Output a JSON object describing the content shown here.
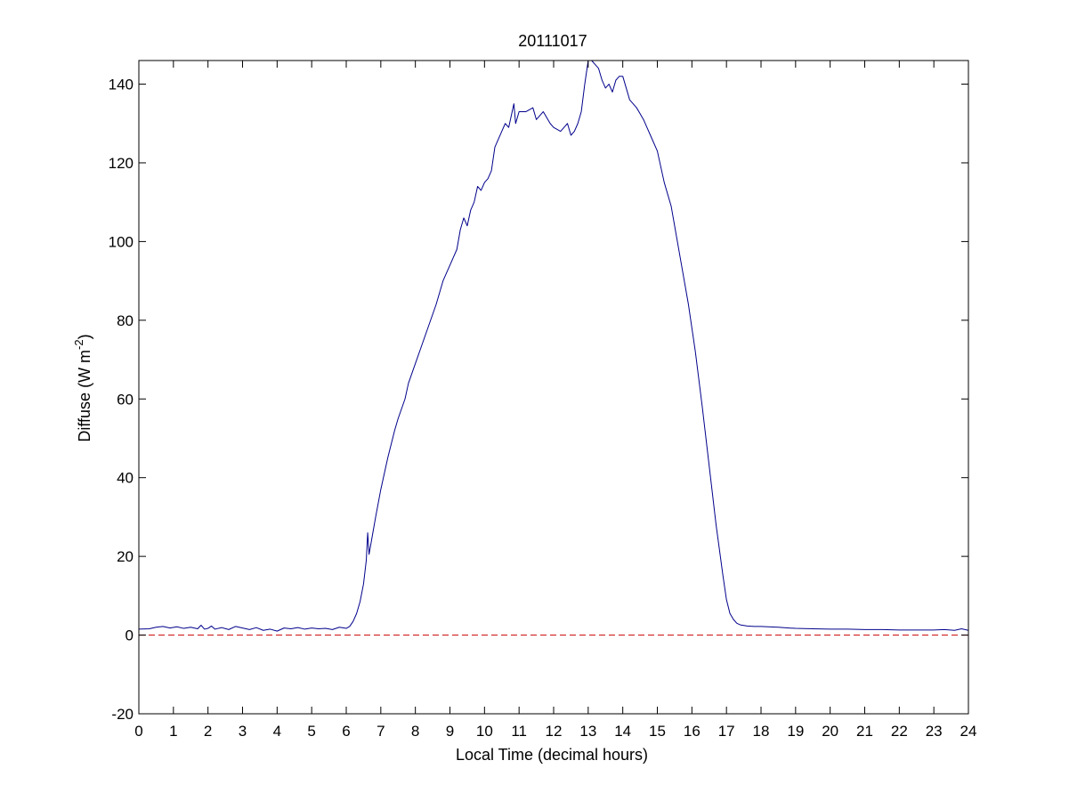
{
  "chart_data": {
    "type": "line",
    "title": "20111017",
    "xlabel": "Local Time (decimal hours)",
    "ylabel": {
      "main": "Diffuse (W m",
      "superscript": "-2",
      "close": ")"
    },
    "xlim": [
      0,
      24
    ],
    "ylim": [
      -20,
      146
    ],
    "x_ticks": [
      0,
      1,
      2,
      3,
      4,
      5,
      6,
      7,
      8,
      9,
      10,
      11,
      12,
      13,
      14,
      15,
      16,
      17,
      18,
      19,
      20,
      21,
      22,
      23,
      24
    ],
    "y_ticks": [
      -20,
      0,
      20,
      40,
      60,
      80,
      100,
      120,
      140
    ],
    "grid": false,
    "legend": "none",
    "reference_line": {
      "y": 0,
      "style": "dashed",
      "color": "#cc0000"
    },
    "series": [
      {
        "color": "#00008b",
        "points": [
          [
            0.0,
            1.5
          ],
          [
            0.3,
            1.6
          ],
          [
            0.5,
            2.0
          ],
          [
            0.7,
            2.2
          ],
          [
            0.9,
            1.8
          ],
          [
            1.1,
            2.1
          ],
          [
            1.3,
            1.7
          ],
          [
            1.5,
            2.0
          ],
          [
            1.7,
            1.6
          ],
          [
            1.8,
            2.5
          ],
          [
            1.9,
            1.5
          ],
          [
            2.0,
            1.7
          ],
          [
            2.1,
            2.3
          ],
          [
            2.2,
            1.5
          ],
          [
            2.4,
            1.9
          ],
          [
            2.6,
            1.4
          ],
          [
            2.8,
            2.2
          ],
          [
            3.0,
            1.8
          ],
          [
            3.2,
            1.4
          ],
          [
            3.4,
            1.9
          ],
          [
            3.6,
            1.2
          ],
          [
            3.8,
            1.5
          ],
          [
            4.0,
            1.0
          ],
          [
            4.2,
            1.8
          ],
          [
            4.4,
            1.6
          ],
          [
            4.6,
            1.9
          ],
          [
            4.8,
            1.5
          ],
          [
            5.0,
            1.8
          ],
          [
            5.2,
            1.6
          ],
          [
            5.4,
            1.7
          ],
          [
            5.6,
            1.4
          ],
          [
            5.8,
            2.0
          ],
          [
            6.0,
            1.7
          ],
          [
            6.1,
            2.2
          ],
          [
            6.2,
            3.5
          ],
          [
            6.3,
            5.5
          ],
          [
            6.4,
            8.5
          ],
          [
            6.5,
            13.0
          ],
          [
            6.58,
            19.0
          ],
          [
            6.62,
            26.0
          ],
          [
            6.66,
            20.5
          ],
          [
            6.75,
            25.0
          ],
          [
            6.85,
            30.0
          ],
          [
            7.0,
            37.0
          ],
          [
            7.2,
            45.0
          ],
          [
            7.4,
            52.0
          ],
          [
            7.5,
            55.0
          ],
          [
            7.7,
            60.0
          ],
          [
            7.8,
            64.0
          ],
          [
            8.0,
            69.0
          ],
          [
            8.2,
            74.0
          ],
          [
            8.4,
            79.0
          ],
          [
            8.6,
            84.0
          ],
          [
            8.8,
            90.0
          ],
          [
            9.0,
            94.0
          ],
          [
            9.1,
            96.0
          ],
          [
            9.2,
            98.0
          ],
          [
            9.3,
            103.0
          ],
          [
            9.4,
            106.0
          ],
          [
            9.5,
            104.0
          ],
          [
            9.6,
            108.0
          ],
          [
            9.7,
            110.0
          ],
          [
            9.8,
            114.0
          ],
          [
            9.9,
            113.0
          ],
          [
            10.0,
            115.0
          ],
          [
            10.1,
            116.0
          ],
          [
            10.2,
            118.0
          ],
          [
            10.3,
            124.0
          ],
          [
            10.4,
            126.0
          ],
          [
            10.5,
            128.0
          ],
          [
            10.6,
            130.0
          ],
          [
            10.7,
            129.0
          ],
          [
            10.8,
            133.0
          ],
          [
            10.85,
            135.0
          ],
          [
            10.9,
            130.0
          ],
          [
            11.0,
            133.0
          ],
          [
            11.2,
            133.0
          ],
          [
            11.4,
            134.0
          ],
          [
            11.5,
            131.0
          ],
          [
            11.7,
            133.0
          ],
          [
            11.9,
            130.0
          ],
          [
            12.0,
            129.0
          ],
          [
            12.2,
            128.0
          ],
          [
            12.4,
            130.0
          ],
          [
            12.5,
            127.0
          ],
          [
            12.6,
            128.0
          ],
          [
            12.7,
            130.0
          ],
          [
            12.8,
            133.0
          ],
          [
            12.9,
            140.0
          ],
          [
            13.0,
            146.0
          ],
          [
            13.1,
            146.0
          ],
          [
            13.2,
            145.0
          ],
          [
            13.3,
            144.0
          ],
          [
            13.4,
            141.0
          ],
          [
            13.5,
            139.0
          ],
          [
            13.6,
            140.0
          ],
          [
            13.7,
            138.0
          ],
          [
            13.8,
            141.0
          ],
          [
            13.9,
            142.0
          ],
          [
            14.0,
            142.0
          ],
          [
            14.1,
            139.0
          ],
          [
            14.2,
            136.0
          ],
          [
            14.4,
            134.0
          ],
          [
            14.6,
            131.0
          ],
          [
            14.7,
            129.0
          ],
          [
            14.8,
            127.0
          ],
          [
            15.0,
            123.0
          ],
          [
            15.2,
            115.0
          ],
          [
            15.4,
            109.0
          ],
          [
            15.5,
            104.0
          ],
          [
            15.7,
            94.0
          ],
          [
            15.9,
            84.0
          ],
          [
            16.1,
            72.0
          ],
          [
            16.3,
            58.0
          ],
          [
            16.5,
            43.0
          ],
          [
            16.7,
            28.0
          ],
          [
            16.9,
            15.0
          ],
          [
            17.0,
            9.0
          ],
          [
            17.1,
            5.5
          ],
          [
            17.2,
            4.0
          ],
          [
            17.3,
            3.0
          ],
          [
            17.4,
            2.6
          ],
          [
            17.6,
            2.3
          ],
          [
            17.8,
            2.2
          ],
          [
            18.0,
            2.2
          ],
          [
            18.2,
            2.1
          ],
          [
            18.5,
            2.0
          ],
          [
            18.8,
            1.8
          ],
          [
            19.0,
            1.7
          ],
          [
            19.5,
            1.6
          ],
          [
            20.0,
            1.5
          ],
          [
            20.5,
            1.5
          ],
          [
            21.0,
            1.4
          ],
          [
            21.5,
            1.4
          ],
          [
            22.0,
            1.3
          ],
          [
            22.5,
            1.3
          ],
          [
            23.0,
            1.3
          ],
          [
            23.3,
            1.4
          ],
          [
            23.6,
            1.2
          ],
          [
            23.8,
            1.6
          ],
          [
            24.0,
            1.2
          ]
        ]
      }
    ]
  }
}
